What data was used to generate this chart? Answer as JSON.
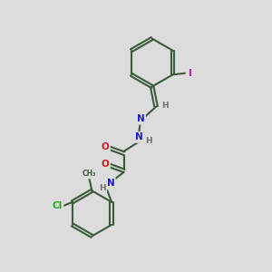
{
  "background_color": "#dcdcdc",
  "bond_color": "#3a5a3a",
  "atom_colors": {
    "N": "#1a1acc",
    "O": "#cc1a1a",
    "Cl": "#22aa22",
    "I": "#cc00cc",
    "C": "#3a5a3a",
    "H": "#707070"
  },
  "figsize": [
    3.0,
    3.0
  ],
  "dpi": 100
}
